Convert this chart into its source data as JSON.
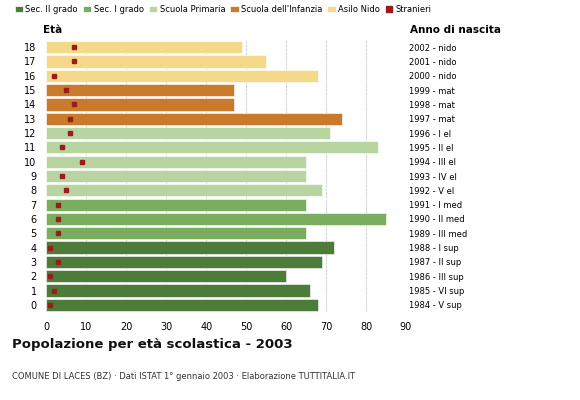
{
  "ages": [
    18,
    17,
    16,
    15,
    14,
    13,
    12,
    11,
    10,
    9,
    8,
    7,
    6,
    5,
    4,
    3,
    2,
    1,
    0
  ],
  "anni_nascita": [
    "1984 - V sup",
    "1985 - VI sup",
    "1986 - III sup",
    "1987 - II sup",
    "1988 - I sup",
    "1989 - III med",
    "1990 - II med",
    "1991 - I med",
    "1992 - V el",
    "1993 - IV el",
    "1994 - III el",
    "1995 - II el",
    "1996 - I el",
    "1997 - mat",
    "1998 - mat",
    "1999 - mat",
    "2000 - nido",
    "2001 - nido",
    "2002 - nido"
  ],
  "bar_values": [
    68,
    66,
    60,
    69,
    72,
    65,
    85,
    65,
    69,
    65,
    65,
    83,
    71,
    74,
    47,
    47,
    68,
    55,
    49
  ],
  "stranieri": [
    1,
    2,
    1,
    3,
    1,
    3,
    3,
    3,
    5,
    4,
    9,
    4,
    6,
    6,
    7,
    5,
    2,
    7,
    7
  ],
  "bar_colors": [
    "#4d7c3a",
    "#4d7c3a",
    "#4d7c3a",
    "#4d7c3a",
    "#4d7c3a",
    "#7aad5e",
    "#7aad5e",
    "#7aad5e",
    "#b8d4a0",
    "#b8d4a0",
    "#b8d4a0",
    "#b8d4a0",
    "#b8d4a0",
    "#c97a2a",
    "#c97a2a",
    "#c97a2a",
    "#f5d98a",
    "#f5d98a",
    "#f5d98a"
  ],
  "legend_labels": [
    "Sec. II grado",
    "Sec. I grado",
    "Scuola Primaria",
    "Scuola dell'Infanzia",
    "Asilo Nido",
    "Stranieri"
  ],
  "legend_colors": [
    "#4d7c3a",
    "#7aad5e",
    "#b8d4a0",
    "#c97a2a",
    "#f5d98a",
    "#9b1c1c"
  ],
  "title": "Popolazione per età scolastica - 2003",
  "subtitle": "COMUNE DI LACES (BZ) · Dati ISTAT 1° gennaio 2003 · Elaborazione TUTTITALIA.IT",
  "xlim": [
    0,
    90
  ],
  "xticks": [
    0,
    10,
    20,
    30,
    40,
    50,
    60,
    70,
    80,
    90
  ],
  "grid_color": "#bbbbbb",
  "stranieri_color": "#9b1c1c",
  "bg_color": "#ffffff"
}
